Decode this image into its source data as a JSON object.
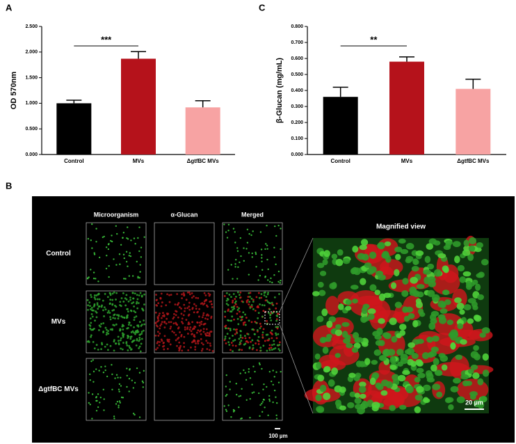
{
  "chart_data": [
    {
      "type": "bar",
      "panel_label": "A",
      "ylabel": "OD 570nm",
      "categories": [
        "Control",
        "MVs",
        "ΔgtfBC MVs"
      ],
      "values": [
        1.0,
        1.87,
        0.92
      ],
      "errors": [
        0.06,
        0.14,
        0.13
      ],
      "colors": [
        "#000000",
        "#b5121b",
        "#f7a3a3"
      ],
      "ylim": [
        0,
        2.5
      ],
      "yticks": [
        {
          "value": 0,
          "label": "0.000"
        },
        {
          "value": 0.5,
          "label": "0.500"
        },
        {
          "value": 1,
          "label": "1.000"
        },
        {
          "value": 1.5,
          "label": "1.500"
        },
        {
          "value": 2,
          "label": "2.000"
        },
        {
          "value": 2.5,
          "label": "2.500"
        }
      ],
      "significance": "***"
    },
    {
      "type": "bar",
      "panel_label": "C",
      "ylabel": "β-Glucan  (mg/mL)",
      "categories": [
        "Control",
        "MVs",
        "ΔgtfBC MVs"
      ],
      "values": [
        0.36,
        0.58,
        0.41
      ],
      "errors": [
        0.06,
        0.03,
        0.06
      ],
      "colors": [
        "#000000",
        "#b5121b",
        "#f7a3a3"
      ],
      "ylim": [
        0,
        0.8
      ],
      "yticks": [
        {
          "value": 0,
          "label": "0.000"
        },
        {
          "value": 0.1,
          "label": "0.100"
        },
        {
          "value": 0.2,
          "label": "0.200"
        },
        {
          "value": 0.3,
          "label": "0.300"
        },
        {
          "value": 0.4,
          "label": "0.400"
        },
        {
          "value": 0.5,
          "label": "0.500"
        },
        {
          "value": 0.6,
          "label": "0.600"
        },
        {
          "value": 0.7,
          "label": "0.700"
        },
        {
          "value": 0.8,
          "label": "0.800"
        }
      ],
      "significance": "**"
    }
  ],
  "figure_b": {
    "panel_label": "B",
    "columns": [
      "Microorganism",
      "α-Glucan",
      "Merged"
    ],
    "rows": [
      "Control",
      "MVs",
      "ΔgtfBC MVs"
    ],
    "magnified_title": "Magnified view",
    "scale_bar_main": "100 µm",
    "scale_bar_magnified": "20 µm"
  }
}
